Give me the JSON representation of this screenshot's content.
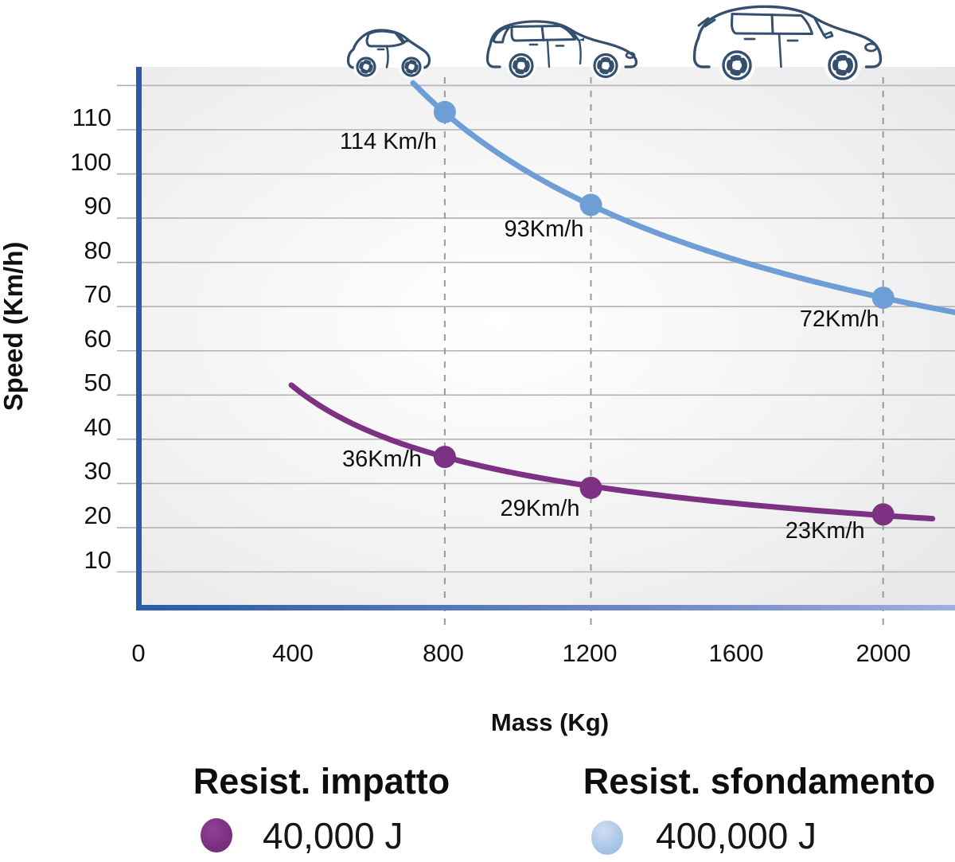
{
  "chart_data": {
    "type": "line",
    "title": "",
    "xlabel": "Mass (Kg)",
    "ylabel": "Speed (Km/h)",
    "x_ticks": [
      0,
      400,
      800,
      1200,
      1600,
      2000
    ],
    "y_ticks": [
      10,
      20,
      30,
      40,
      50,
      60,
      70,
      80,
      90,
      100,
      110
    ],
    "unlabeled_gridlines": [
      120
    ],
    "xlim": [
      0,
      2200
    ],
    "ylim": [
      0,
      120
    ],
    "grid": "horizontal",
    "dashed_guides_x": [
      800,
      1200,
      2000
    ],
    "legend_position": "bottom",
    "series": [
      {
        "name": "Resist. impatto",
        "energy_label": "40,000 J",
        "energy_joules": 40000,
        "color": "#7c3182",
        "mass_range": [
          380,
          2135
        ],
        "points": [
          {
            "mass": 800,
            "speed": 36,
            "label": "36Km/h",
            "label_dx": -29,
            "label_dy": 3
          },
          {
            "mass": 1200,
            "speed": 29,
            "label": "29Km/h",
            "label_dx": -14,
            "label_dy": 26
          },
          {
            "mass": 2000,
            "speed": 23,
            "label": "23Km/h",
            "label_dx": -23,
            "label_dy": 21
          }
        ]
      },
      {
        "name": "Resist. sfondamento",
        "energy_label": "400,000 J",
        "energy_joules": 400000,
        "color": "#6f9ed6",
        "mass_range": [
          713,
          2196
        ],
        "points": [
          {
            "mass": 800,
            "speed": 114,
            "label": "114 Km/h",
            "label_dx": -10,
            "label_dy": 37
          },
          {
            "mass": 1200,
            "speed": 93,
            "label": "93Km/h",
            "label_dx": -9,
            "label_dy": 31
          },
          {
            "mass": 2000,
            "speed": 72,
            "label": "72Km/h",
            "label_dx": -5,
            "label_dy": 27
          }
        ]
      }
    ]
  },
  "axis_labels": {
    "x": "Mass (Kg)",
    "y": "Speed (Km/h)"
  },
  "legend": {
    "items": [
      {
        "title": "Resist. impatto",
        "value": "40,000 J",
        "color": "#7c3182"
      },
      {
        "title": "Resist. sfondamento",
        "value": "400,000 J",
        "color": "#abc7e8"
      }
    ]
  },
  "icons": [
    {
      "name": "city-car-icon"
    },
    {
      "name": "hatchback-car-icon"
    },
    {
      "name": "suv-car-icon"
    }
  ],
  "colors": {
    "axis_blue": "#2b5ba8",
    "axis_blue_fade": "#9fb0de",
    "grid": "#b2b2b2",
    "guide": "#9a9a9a",
    "series_impact": "#7c3182",
    "series_penetration": "#6f9ed6",
    "legend_blue_dot": "#abc7e8",
    "car_outline": "#35506e",
    "text": "#111111"
  }
}
